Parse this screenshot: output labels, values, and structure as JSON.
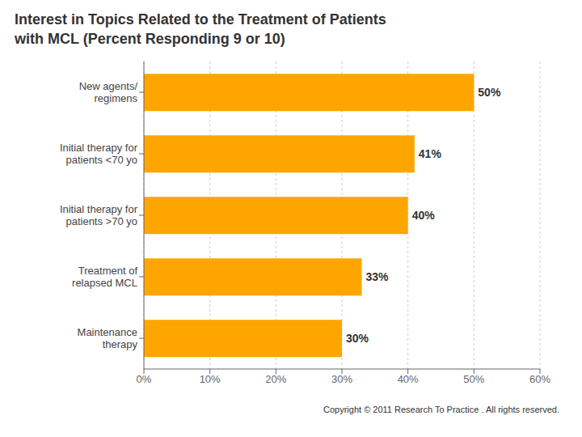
{
  "chart_data": {
    "type": "bar",
    "orientation": "horizontal",
    "title": "Interest in Topics Related to the Treatment of Patients\nwith MCL (Percent Responding 9 or 10)",
    "categories": [
      "New agents/\nregimens",
      "Initial therapy for\npatients <70 yo",
      "Initial therapy for\npatients >70 yo",
      "Treatment of\nrelapsed MCL",
      "Maintenance\ntherapy"
    ],
    "values": [
      50,
      41,
      40,
      33,
      30
    ],
    "value_labels": [
      "50%",
      "41%",
      "40%",
      "33%",
      "30%"
    ],
    "data_labels": true,
    "color": "#FFA500",
    "xlim": [
      0,
      60
    ],
    "xticks": [
      {
        "value": 0,
        "label": "0%"
      },
      {
        "value": 10,
        "label": "10%"
      },
      {
        "value": 20,
        "label": "20%"
      },
      {
        "value": 30,
        "label": "30%"
      },
      {
        "value": 40,
        "label": "40%"
      },
      {
        "value": 50,
        "label": "50%"
      },
      {
        "value": 60,
        "label": "60%"
      }
    ],
    "grid": true,
    "annotations": [
      "Copyright © 2011 Research To Practice . All rights reserved."
    ]
  }
}
